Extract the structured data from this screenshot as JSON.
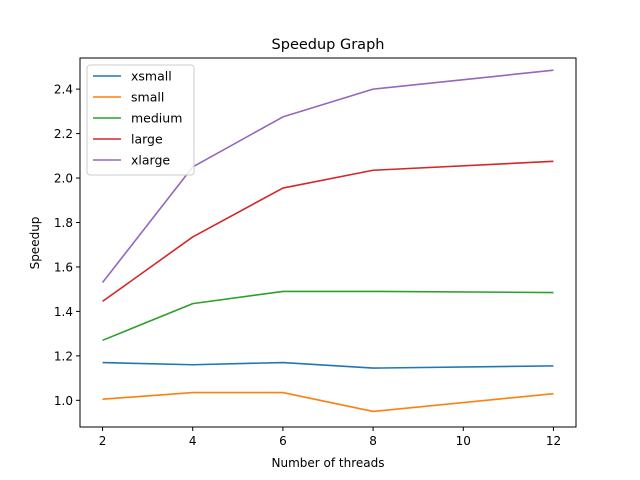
{
  "chart_data": {
    "type": "line",
    "title": "Speedup Graph",
    "xlabel": "Number of threads",
    "ylabel": "Speedup",
    "x": [
      2,
      4,
      6,
      8,
      12
    ],
    "xticks": [
      2,
      4,
      6,
      8,
      10,
      12
    ],
    "yticks": [
      1.0,
      1.2,
      1.4,
      1.6,
      1.8,
      2.0,
      2.2,
      2.4
    ],
    "xlim": [
      1.5,
      12.5
    ],
    "ylim": [
      0.88,
      2.54
    ],
    "grid": false,
    "legend_position": "top-left",
    "series": [
      {
        "name": "xsmall",
        "color": "#1f77b4",
        "values": [
          1.17,
          1.16,
          1.17,
          1.145,
          1.155
        ]
      },
      {
        "name": "small",
        "color": "#ff7f0e",
        "values": [
          1.005,
          1.035,
          1.035,
          0.95,
          1.03
        ]
      },
      {
        "name": "medium",
        "color": "#2ca02c",
        "values": [
          1.27,
          1.435,
          1.49,
          1.49,
          1.485
        ]
      },
      {
        "name": "large",
        "color": "#d62728",
        "values": [
          1.445,
          1.735,
          1.955,
          2.035,
          2.075
        ]
      },
      {
        "name": "xlarge",
        "color": "#9467bd",
        "values": [
          1.53,
          2.05,
          2.275,
          2.4,
          2.485
        ]
      }
    ]
  }
}
